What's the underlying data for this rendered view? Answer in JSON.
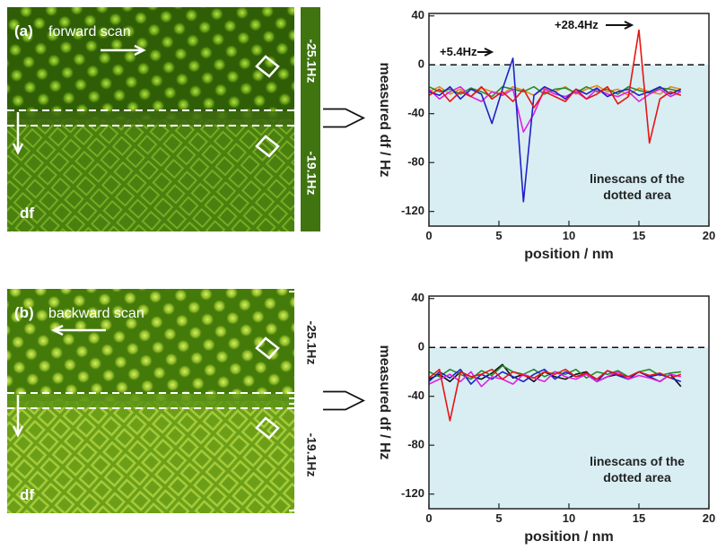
{
  "images": [
    {
      "label": "(a)",
      "scan": "forward scan",
      "channel": "df",
      "ranges": [
        "-25.1Hz",
        "-19.1Hz"
      ]
    },
    {
      "label": "(b)",
      "scan": "backward scan",
      "channel": "df",
      "ranges": [
        "-25.1Hz",
        "-19.1Hz"
      ]
    }
  ],
  "chart_data": [
    {
      "type": "line",
      "xlabel": "position / nm",
      "ylabel": "measured df / Hz",
      "note": [
        "linescans of the",
        "dotted area"
      ],
      "annotations": [
        "+5.4Hz",
        "+28.4Hz"
      ],
      "xlim": [
        0,
        20
      ],
      "xticks": [
        0,
        5,
        10,
        15,
        20
      ],
      "ylim": [
        -132,
        42
      ],
      "yticks": [
        40,
        0,
        -40,
        -80,
        -120
      ],
      "zero_line": true,
      "shade_color": "#d8eef3",
      "x": [
        0,
        0.75,
        1.5,
        2.25,
        3,
        3.75,
        4.5,
        5.25,
        6,
        6.75,
        7.5,
        8.25,
        9,
        9.75,
        10.5,
        11.25,
        12,
        12.75,
        13.5,
        14.25,
        15,
        15.75,
        16.5,
        17.25,
        18
      ],
      "series": [
        {
          "color": "#e28a1e",
          "values": [
            -22,
            -18,
            -24,
            -20,
            -26,
            -19,
            -22,
            -24,
            -18,
            -21,
            -25,
            -19,
            -22,
            -18,
            -24,
            -20,
            -17,
            -22,
            -20,
            -25,
            -19,
            -22,
            -24,
            -18,
            -20
          ]
        },
        {
          "color": "#2a8a2a",
          "values": [
            -18,
            -22,
            -20,
            -24,
            -19,
            -22,
            -26,
            -18,
            -20,
            -22,
            -18,
            -24,
            -20,
            -19,
            -23,
            -18,
            -22,
            -20,
            -24,
            -18,
            -21,
            -23,
            -19,
            -20,
            -22
          ]
        },
        {
          "color": "#e020e0",
          "values": [
            -20,
            -28,
            -22,
            -18,
            -26,
            -30,
            -22,
            -25,
            -20,
            -55,
            -40,
            -20,
            -24,
            -26,
            -22,
            -28,
            -20,
            -24,
            -26,
            -22,
            -30,
            -24,
            -20,
            -26,
            -22
          ]
        },
        {
          "color": "#2020c8",
          "values": [
            -22,
            -25,
            -18,
            -28,
            -20,
            -24,
            -48,
            -20,
            5.4,
            -112,
            -25,
            -18,
            -22,
            -28,
            -20,
            -24,
            -19,
            -26,
            -22,
            -20,
            -25,
            -22,
            -18,
            -24,
            -20
          ]
        },
        {
          "color": "#e81414",
          "values": [
            -25,
            -20,
            -30,
            -22,
            -26,
            -18,
            -28,
            -22,
            -30,
            -20,
            -35,
            -22,
            -26,
            -30,
            -20,
            -28,
            -24,
            -18,
            -32,
            -26,
            28.4,
            -64,
            -28,
            -22,
            -25
          ]
        }
      ]
    },
    {
      "type": "line",
      "xlabel": "position / nm",
      "ylabel": "measured df / Hz",
      "note": [
        "linescans of the",
        "dotted area"
      ],
      "xlim": [
        0,
        20
      ],
      "xticks": [
        0,
        5,
        10,
        15,
        20
      ],
      "ylim": [
        -132,
        42
      ],
      "yticks": [
        40,
        0,
        -40,
        -80,
        -120
      ],
      "zero_line": true,
      "shade_color": "#d8eef3",
      "x": [
        0,
        0.75,
        1.5,
        2.25,
        3,
        3.75,
        4.5,
        5.25,
        6,
        6.75,
        7.5,
        8.25,
        9,
        9.75,
        10.5,
        11.25,
        12,
        12.75,
        13.5,
        14.25,
        15,
        15.75,
        16.5,
        17.25,
        18
      ],
      "series": [
        {
          "color": "#111111",
          "values": [
            -26,
            -22,
            -28,
            -20,
            -24,
            -26,
            -21,
            -14,
            -25,
            -22,
            -28,
            -20,
            -24,
            -26,
            -22,
            -20,
            -28,
            -24,
            -22,
            -26,
            -20,
            -24,
            -28,
            -22,
            -32
          ]
        },
        {
          "color": "#2a8a2a",
          "values": [
            -20,
            -24,
            -18,
            -22,
            -26,
            -19,
            -23,
            -15,
            -20,
            -22,
            -18,
            -24,
            -20,
            -22,
            -18,
            -25,
            -20,
            -22,
            -19,
            -24,
            -20,
            -18,
            -23,
            -21,
            -20
          ]
        },
        {
          "color": "#2020c8",
          "values": [
            -28,
            -20,
            -25,
            -18,
            -30,
            -22,
            -26,
            -20,
            -24,
            -28,
            -22,
            -18,
            -26,
            -20,
            -24,
            -22,
            -28,
            -19,
            -23,
            -26,
            -20,
            -24,
            -22,
            -25,
            -28
          ]
        },
        {
          "color": "#e020e0",
          "values": [
            -30,
            -26,
            -22,
            -28,
            -20,
            -32,
            -24,
            -26,
            -30,
            -22,
            -25,
            -28,
            -20,
            -24,
            -26,
            -22,
            -28,
            -24,
            -20,
            -26,
            -23,
            -25,
            -28,
            -22,
            -24
          ]
        },
        {
          "color": "#e81414",
          "values": [
            -25,
            -18,
            -60,
            -20,
            -24,
            -22,
            -18,
            -26,
            -20,
            -23,
            -25,
            -20,
            -22,
            -18,
            -24,
            -21,
            -26,
            -19,
            -22,
            -24,
            -20,
            -23,
            -21,
            -25,
            -22
          ]
        }
      ]
    }
  ]
}
